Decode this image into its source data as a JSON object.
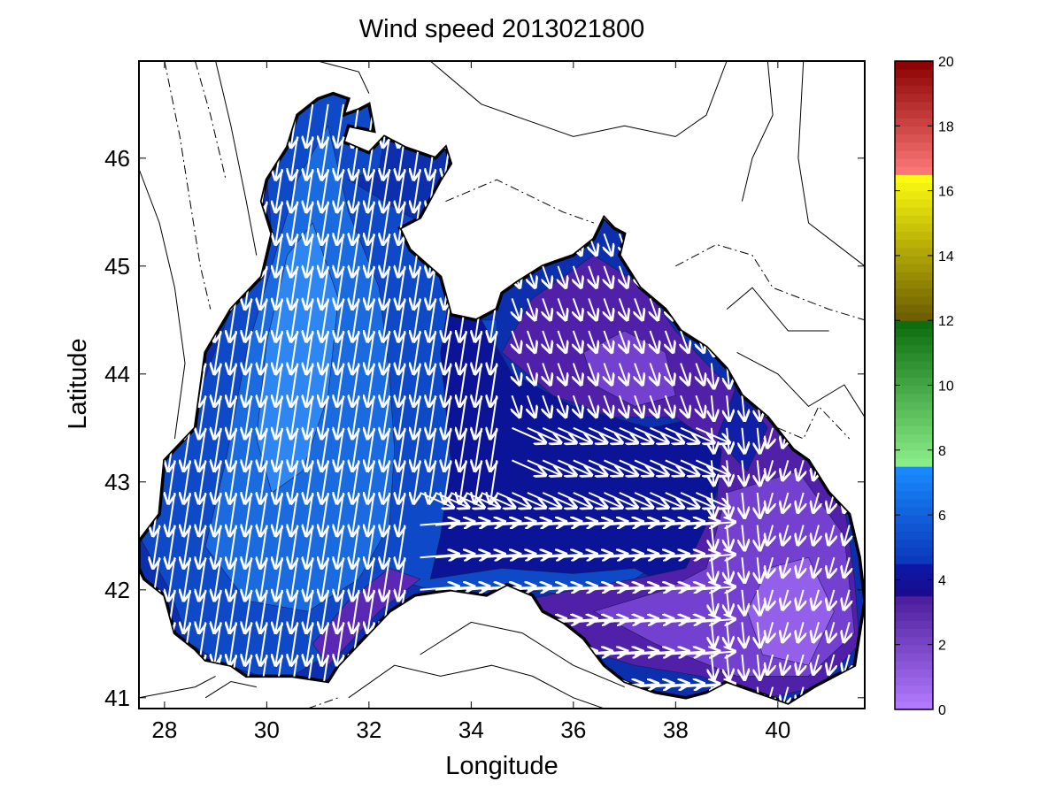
{
  "chart_data": {
    "type": "heatmap",
    "title": "Wind speed 2013021800",
    "xlabel": "Longitude",
    "ylabel": "Latitude",
    "xlim": [
      27.5,
      41.7
    ],
    "ylim": [
      40.9,
      46.9
    ],
    "x_ticks": [
      28,
      30,
      32,
      34,
      36,
      38,
      40
    ],
    "y_ticks": [
      41,
      42,
      43,
      44,
      45,
      46
    ],
    "x_tick_labels": [
      "28",
      "30",
      "32",
      "34",
      "36",
      "38",
      "40"
    ],
    "y_tick_labels": [
      "41",
      "42",
      "43",
      "44",
      "45",
      "46"
    ],
    "grid": false,
    "colorbar": {
      "range": [
        0,
        20
      ],
      "ticks": [
        0,
        2,
        4,
        6,
        8,
        10,
        12,
        14,
        16,
        18,
        20
      ],
      "tick_labels": [
        "0",
        "2",
        "4",
        "6",
        "8",
        "10",
        "12",
        "14",
        "16",
        "18",
        "20"
      ],
      "bands": [
        {
          "from": 0,
          "to": 3.5,
          "color_low": "#b57cff",
          "color_high": "#4a1d9a"
        },
        {
          "from": 3.5,
          "to": 4.5,
          "color_low": "#1c0a8e",
          "color_high": "#0a1aa8"
        },
        {
          "from": 4.5,
          "to": 7.5,
          "color_low": "#0a36b8",
          "color_high": "#1a8cff"
        },
        {
          "from": 7.5,
          "to": 12,
          "color_low": "#8cf08c",
          "color_high": "#0a6a0a"
        },
        {
          "from": 12,
          "to": 16.5,
          "color_low": "#6a5a00",
          "color_high": "#ffff10"
        },
        {
          "from": 16.5,
          "to": 20,
          "color_low": "#ff7a7a",
          "color_high": "#8a0000"
        }
      ]
    },
    "regions": [
      {
        "level": 5.8,
        "color": "#0e49c8",
        "points": [
          [
            27.5,
            42.5
          ],
          [
            28.0,
            43.2
          ],
          [
            28.5,
            43.6
          ],
          [
            29.3,
            44.6
          ],
          [
            29.9,
            45.0
          ],
          [
            30.1,
            45.3
          ],
          [
            30.0,
            45.8
          ],
          [
            30.6,
            46.4
          ],
          [
            31.2,
            46.6
          ],
          [
            32.0,
            46.5
          ],
          [
            32.3,
            46.2
          ],
          [
            32.2,
            45.9
          ],
          [
            31.6,
            45.8
          ],
          [
            33.0,
            45.4
          ],
          [
            33.5,
            45.2
          ],
          [
            33.7,
            44.7
          ],
          [
            34.2,
            44.5
          ],
          [
            34.5,
            44.5
          ],
          [
            34.5,
            43.9
          ],
          [
            35.0,
            43.6
          ],
          [
            36.0,
            43.4
          ],
          [
            37.0,
            43.3
          ],
          [
            38.0,
            43.2
          ],
          [
            38.4,
            42.9
          ],
          [
            38.2,
            42.4
          ],
          [
            37.2,
            42.1
          ],
          [
            36.0,
            41.95
          ],
          [
            35.0,
            42.0
          ],
          [
            34.0,
            42.0
          ],
          [
            33.2,
            42.0
          ],
          [
            32.5,
            42.1
          ],
          [
            31.2,
            41.4
          ],
          [
            30.5,
            41.2
          ],
          [
            29.9,
            41.2
          ],
          [
            29.2,
            41.3
          ],
          [
            28.5,
            41.5
          ],
          [
            28.1,
            42.0
          ]
        ]
      },
      {
        "level": 6.8,
        "color": "#1a6ae0",
        "points": [
          [
            28.8,
            42.4
          ],
          [
            29.2,
            43.2
          ],
          [
            29.6,
            44.2
          ],
          [
            30.1,
            45.0
          ],
          [
            30.6,
            45.8
          ],
          [
            31.2,
            46.3
          ],
          [
            31.6,
            45.5
          ],
          [
            32.2,
            44.8
          ],
          [
            32.4,
            44.0
          ],
          [
            32.5,
            43.3
          ],
          [
            32.4,
            42.6
          ],
          [
            31.8,
            42.1
          ],
          [
            30.8,
            41.8
          ],
          [
            29.6,
            41.9
          ]
        ]
      },
      {
        "level": 7.4,
        "color": "#2e86f2",
        "points": [
          [
            29.8,
            43.4
          ],
          [
            30.0,
            44.3
          ],
          [
            30.4,
            45.1
          ],
          [
            30.9,
            45.4
          ],
          [
            31.4,
            44.7
          ],
          [
            31.2,
            43.8
          ],
          [
            30.7,
            43.1
          ],
          [
            30.1,
            42.9
          ]
        ]
      },
      {
        "level": 5.8,
        "color": "#1254d2",
        "points": [
          [
            34.2,
            42.5
          ],
          [
            35.0,
            42.8
          ],
          [
            36.0,
            43.0
          ],
          [
            37.2,
            42.9
          ],
          [
            38.0,
            42.7
          ],
          [
            37.8,
            42.3
          ],
          [
            36.6,
            42.2
          ],
          [
            35.4,
            42.3
          ]
        ]
      },
      {
        "level": 6.5,
        "color": "#1e6ee4",
        "points": [
          [
            35.0,
            42.55
          ],
          [
            36.0,
            42.75
          ],
          [
            37.0,
            42.7
          ],
          [
            36.8,
            42.45
          ],
          [
            35.8,
            42.45
          ]
        ]
      },
      {
        "level": 3.8,
        "color": "#0b1496",
        "points": [
          [
            33.2,
            42.1
          ],
          [
            34.6,
            42.2
          ],
          [
            36.0,
            42.15
          ],
          [
            37.2,
            42.2
          ],
          [
            38.0,
            42.0
          ],
          [
            38.6,
            42.6
          ],
          [
            39.0,
            43.2
          ],
          [
            38.5,
            43.6
          ],
          [
            37.5,
            43.5
          ],
          [
            36.0,
            43.7
          ],
          [
            34.8,
            44.0
          ],
          [
            34.2,
            44.5
          ],
          [
            33.6,
            44.8
          ],
          [
            33.4,
            44.2
          ],
          [
            33.6,
            43.2
          ],
          [
            33.4,
            42.5
          ]
        ]
      },
      {
        "level": 2.8,
        "color": "#5020a8",
        "points": [
          [
            34.6,
            44.2
          ],
          [
            35.2,
            44.7
          ],
          [
            36.4,
            45.1
          ],
          [
            37.4,
            44.8
          ],
          [
            38.0,
            44.4
          ],
          [
            38.8,
            44.0
          ],
          [
            39.3,
            43.8
          ],
          [
            40.6,
            43.3
          ],
          [
            41.3,
            42.8
          ],
          [
            41.5,
            42.1
          ],
          [
            41.6,
            41.5
          ],
          [
            40.8,
            41.1
          ],
          [
            39.8,
            41.0
          ],
          [
            38.5,
            41.2
          ],
          [
            37.2,
            41.3
          ],
          [
            35.8,
            41.5
          ],
          [
            35.0,
            41.9
          ],
          [
            36.0,
            42.0
          ],
          [
            37.2,
            42.1
          ],
          [
            38.2,
            42.2
          ],
          [
            38.8,
            42.8
          ],
          [
            38.9,
            43.3
          ],
          [
            38.0,
            43.6
          ],
          [
            36.8,
            43.6
          ],
          [
            35.6,
            43.8
          ]
        ]
      },
      {
        "level": 1.8,
        "color": "#7440d0",
        "points": [
          [
            36.2,
            44.2
          ],
          [
            37.0,
            44.4
          ],
          [
            37.8,
            44.2
          ],
          [
            38.0,
            43.8
          ],
          [
            37.2,
            43.7
          ],
          [
            36.4,
            43.9
          ]
        ]
      },
      {
        "level": 1.8,
        "color": "#7440d0",
        "points": [
          [
            39.0,
            42.9
          ],
          [
            40.4,
            43.1
          ],
          [
            41.3,
            42.5
          ],
          [
            41.5,
            41.6
          ],
          [
            40.6,
            41.2
          ],
          [
            39.2,
            41.2
          ],
          [
            37.6,
            41.5
          ],
          [
            36.4,
            41.8
          ],
          [
            37.8,
            42.0
          ],
          [
            38.6,
            42.2
          ]
        ]
      },
      {
        "level": 1.0,
        "color": "#9460ea",
        "points": [
          [
            39.8,
            42.2
          ],
          [
            40.6,
            42.3
          ],
          [
            41.1,
            41.8
          ],
          [
            40.6,
            41.3
          ],
          [
            39.7,
            41.4
          ],
          [
            39.4,
            41.8
          ]
        ]
      },
      {
        "level": 2.4,
        "color": "#5a28b4",
        "points": [
          [
            31.2,
            41.3
          ],
          [
            32.2,
            41.8
          ],
          [
            33.0,
            42.1
          ],
          [
            32.4,
            42.2
          ],
          [
            31.6,
            41.9
          ],
          [
            30.9,
            41.5
          ]
        ]
      },
      {
        "level": 4.2,
        "color": "#1020a6",
        "points": [
          [
            38.8,
            43.4
          ],
          [
            39.2,
            43.9
          ],
          [
            39.8,
            43.5
          ],
          [
            39.4,
            43.1
          ]
        ]
      }
    ]
  }
}
